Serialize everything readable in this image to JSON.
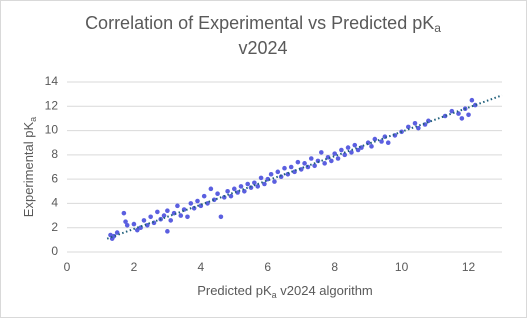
{
  "chart_data": {
    "type": "scatter",
    "title": {
      "text": "Correlation of Experimental vs Predicted pK",
      "subscript": "a",
      "line2": "v2024"
    },
    "x_label": {
      "text": "Predicted pK",
      "subscript": "a",
      "after": " v2024 algorithm"
    },
    "y_label": {
      "text": "Experimental pK",
      "subscript": "a"
    },
    "xlim": [
      0,
      13
    ],
    "ylim": [
      0,
      14
    ],
    "xticks": [
      0,
      2,
      4,
      6,
      8,
      10,
      12
    ],
    "yticks": [
      0,
      2,
      4,
      6,
      8,
      10,
      12,
      14
    ],
    "grid": true,
    "series": [
      {
        "color": "#5b5fe0",
        "x": [
          1.3,
          1.35,
          1.4,
          1.5,
          1.7,
          1.75,
          1.8,
          2.0,
          2.1,
          2.2,
          2.3,
          2.4,
          2.5,
          2.6,
          2.7,
          2.8,
          2.9,
          3.0,
          3.0,
          3.1,
          3.2,
          3.3,
          3.4,
          3.5,
          3.6,
          3.7,
          3.8,
          3.9,
          4.0,
          4.1,
          4.2,
          4.3,
          4.4,
          4.5,
          4.6,
          4.7,
          4.8,
          4.9,
          5.0,
          5.1,
          5.2,
          5.3,
          5.4,
          5.5,
          5.6,
          5.7,
          5.8,
          5.9,
          6.0,
          6.1,
          6.2,
          6.3,
          6.4,
          6.5,
          6.6,
          6.7,
          6.8,
          6.9,
          7.0,
          7.1,
          7.2,
          7.3,
          7.4,
          7.5,
          7.6,
          7.7,
          7.8,
          7.9,
          8.0,
          8.1,
          8.2,
          8.3,
          8.4,
          8.5,
          8.6,
          8.7,
          8.8,
          9.0,
          9.1,
          9.2,
          9.4,
          9.5,
          9.6,
          9.8,
          10.0,
          10.2,
          10.4,
          10.5,
          10.7,
          10.8,
          11.3,
          11.5,
          11.7,
          11.8,
          11.9,
          12.0,
          12.1,
          12.2
        ],
        "values": [
          1.4,
          1.1,
          1.3,
          1.6,
          3.2,
          2.5,
          2.2,
          2.3,
          1.8,
          2.0,
          2.6,
          2.2,
          2.9,
          2.4,
          3.3,
          2.7,
          3.0,
          3.4,
          1.7,
          2.6,
          3.2,
          3.8,
          3.0,
          3.5,
          2.9,
          4.0,
          3.6,
          4.2,
          3.8,
          4.6,
          4.0,
          5.2,
          4.3,
          4.8,
          2.9,
          4.5,
          5.0,
          4.6,
          5.2,
          4.9,
          5.4,
          5.0,
          5.6,
          5.3,
          5.7,
          5.4,
          6.1,
          5.6,
          6.0,
          6.4,
          5.8,
          6.6,
          6.2,
          6.9,
          6.4,
          7.0,
          6.6,
          7.4,
          6.8,
          7.3,
          7.0,
          7.7,
          7.1,
          7.5,
          8.2,
          7.3,
          7.8,
          7.5,
          8.1,
          7.7,
          8.4,
          8.0,
          8.6,
          8.2,
          8.8,
          8.4,
          8.6,
          9.0,
          8.7,
          9.3,
          9.1,
          9.5,
          9.0,
          9.6,
          9.9,
          10.3,
          10.6,
          10.2,
          10.5,
          10.8,
          11.2,
          11.6,
          11.4,
          11.0,
          11.8,
          11.3,
          12.5,
          12.1
        ]
      }
    ],
    "trendline": {
      "x": [
        1.2,
        13
      ],
      "y": [
        1.1,
        12.9
      ],
      "color": "#1f5f7a"
    }
  }
}
